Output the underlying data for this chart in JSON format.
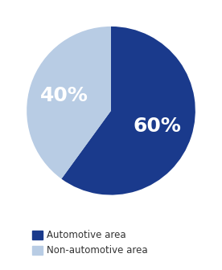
{
  "slices": [
    60,
    40
  ],
  "labels": [
    "60%",
    "40%"
  ],
  "colors": [
    "#1a3a8c",
    "#b8cce4"
  ],
  "legend_labels": [
    "Automotive area",
    "Non-automotive area"
  ],
  "startangle": 90,
  "label_fontsize": 18,
  "label_color": "white",
  "legend_fontsize": 8.5,
  "background_color": "#ffffff",
  "figsize": [
    2.76,
    3.36
  ],
  "dpi": 100
}
